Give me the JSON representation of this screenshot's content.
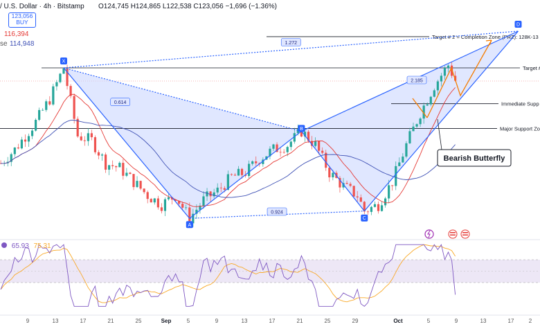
{
  "header": {
    "symbol": "/ U.S. Dollar · 4h · Bitstamp",
    "ohlc": "O124,745 H124,865 L122,538 C123,056 −1,696 (−1.36%)",
    "price_box": "123,056",
    "buy_label": "BUY",
    "ma1_value": "116,394",
    "ma2_label": "se",
    "ma2_value": "114,948"
  },
  "colors": {
    "up": "#26a69a",
    "down": "#ef5350",
    "pattern_line": "#2962ff",
    "pattern_fill": "#c7d3ff",
    "ma_red": "#e53935",
    "ma_blue": "#3f51b5",
    "projection": "#f57c00",
    "rsi": "#7e57c2",
    "rsi_ma": "#f9a825"
  },
  "chart_data": {
    "type": "candlestick",
    "pattern_name": "Bearish Butterfly",
    "x_tick_labels": [
      "9",
      "13",
      "17",
      "21",
      "25",
      "Sep",
      "5",
      "9",
      "13",
      "17",
      "21",
      "25",
      "29",
      "Oct",
      "5",
      "9",
      "13",
      "17",
      "2"
    ],
    "pattern_points": [
      {
        "label": "X",
        "x_day": 13,
        "price": 124400
      },
      {
        "label": "A",
        "x_day": 31,
        "price": 108000
      },
      {
        "label": "B",
        "x_day": 47,
        "price": 117500
      },
      {
        "label": "C",
        "x_day": 56,
        "price": 108800
      },
      {
        "label": "D",
        "x_day": 78,
        "price": 128400
      }
    ],
    "ratios": [
      {
        "label": "0.614",
        "between": [
          "X",
          "B"
        ]
      },
      {
        "label": "0.924",
        "between": [
          "A",
          "C"
        ]
      },
      {
        "label": "1.272",
        "between": [
          "X",
          "D"
        ]
      },
      {
        "label": "2.185",
        "near": "D-leg"
      }
    ],
    "horizontal_levels": [
      {
        "label": "Target # 2 = Completion Zone (PRZ): 128K-13",
        "price": 127800
      },
      {
        "label": "Target #",
        "price": 124400
      },
      {
        "label": "Immediate Supp",
        "price": 120500
      },
      {
        "label": "Major Support Zo",
        "price": 117800
      }
    ],
    "annotations": [
      "Bearish Butterfly"
    ],
    "rsi": {
      "value": "65.93",
      "ma_value": "75.31"
    }
  }
}
